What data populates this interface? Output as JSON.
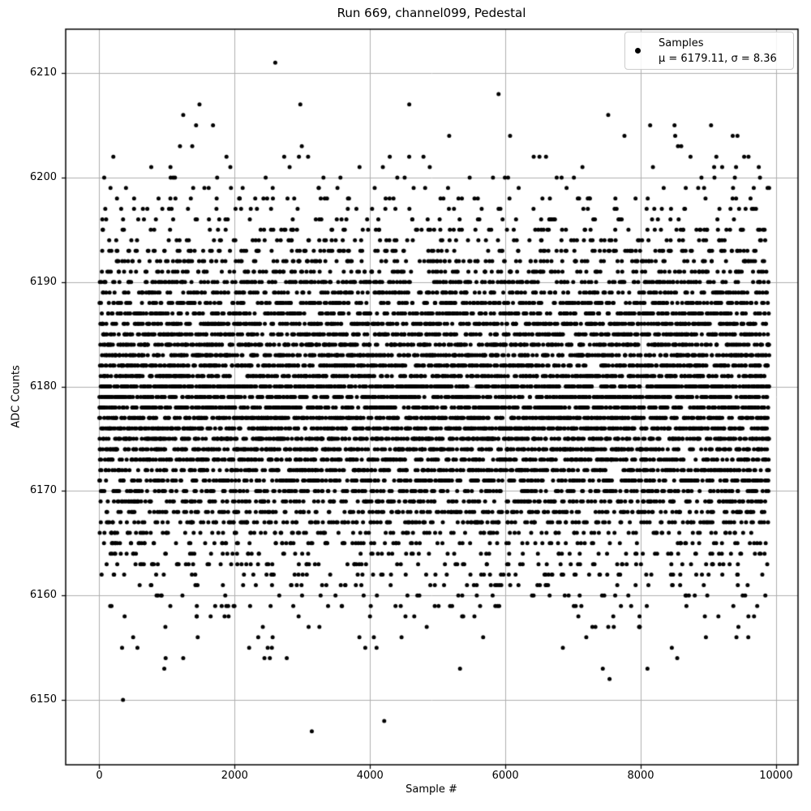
{
  "figure": {
    "title": "Run 669, channel099, Pedestal",
    "xlabel": "Sample #",
    "ylabel": "ADC Counts"
  },
  "legend": {
    "line1": "Samples",
    "line2": "μ = 6179.11, σ = 8.36"
  },
  "colors": {
    "background": "#ffffff",
    "marker": "#000000",
    "grid": "#b0b0b0",
    "spine": "#000000",
    "text": "#000000",
    "legend_border": "#cccccc"
  },
  "chart_data": {
    "type": "scatter",
    "title": "Run 669, channel099, Pedestal",
    "xlabel": "Sample #",
    "ylabel": "ADC Counts",
    "series_name": "Samples",
    "stats": {
      "mean": 6179.11,
      "sigma": 8.36,
      "min": 6147,
      "max": 6211
    },
    "n_samples": 9900,
    "x_start": 0,
    "x_end": 9899,
    "y_integer_quantized": true,
    "xlim": [
      -497,
      10325
    ],
    "ylim": [
      6143.8,
      6214.2
    ],
    "x_ticks": [
      0,
      2000,
      4000,
      6000,
      8000,
      10000
    ],
    "y_ticks": [
      6150,
      6160,
      6170,
      6180,
      6190,
      6200,
      6210
    ],
    "grid": true,
    "legend_position": "upper right",
    "marker": {
      "shape": "circle",
      "color": "#000000",
      "radius_px": 2.5
    },
    "generator": {
      "seed": 669,
      "distribution": "gaussian",
      "round_to_integer": true,
      "bulk_clip": [
        6155,
        6203
      ]
    },
    "notable_points": [
      [
        2600,
        6211
      ],
      [
        5900,
        6208
      ],
      [
        1480,
        6207
      ],
      [
        2970,
        6207
      ],
      [
        4580,
        6207
      ],
      [
        7520,
        6206
      ],
      [
        1240,
        6206
      ],
      [
        1430,
        6205
      ],
      [
        1680,
        6205
      ],
      [
        8140,
        6205
      ],
      [
        8500,
        6205
      ],
      [
        9040,
        6205
      ],
      [
        5170,
        6204
      ],
      [
        6070,
        6204
      ],
      [
        7760,
        6204
      ],
      [
        8510,
        6204
      ],
      [
        9360,
        6204
      ],
      [
        9430,
        6204
      ],
      [
        3140,
        6147
      ],
      [
        4210,
        6148
      ],
      [
        350,
        6150
      ],
      [
        7540,
        6152
      ],
      [
        960,
        6153
      ],
      [
        5330,
        6153
      ],
      [
        7440,
        6153
      ],
      [
        8100,
        6153
      ],
      [
        980,
        6154
      ],
      [
        1240,
        6154
      ],
      [
        2440,
        6154
      ],
      [
        2520,
        6154
      ],
      [
        2770,
        6154
      ],
      [
        8540,
        6154
      ],
      [
        2550,
        6155
      ],
      [
        3930,
        6155
      ],
      [
        6850,
        6155
      ]
    ]
  }
}
